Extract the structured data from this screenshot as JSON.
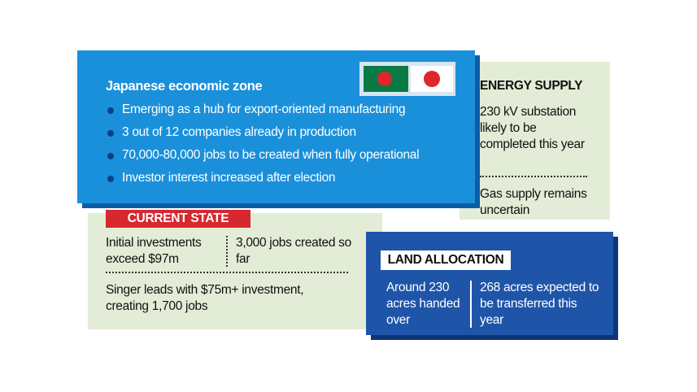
{
  "zone": {
    "title": "Japanese economic zone",
    "bullets": [
      "Emerging as a hub for export-oriented manufacturing",
      "3 out of 12 companies already in production",
      "70,000-80,000 jobs to be created when fully operational",
      "Investor interest increased after election"
    ]
  },
  "energy": {
    "title": "ENERGY SUPPLY",
    "items": [
      "230 kV substation likely to be completed this year",
      "Gas supply remains uncertain"
    ]
  },
  "current": {
    "title": "CURRENT STATE",
    "items": [
      "Initial investments exceed $97m",
      "3,000 jobs created so far"
    ],
    "note": "Singer leads with $75m+ investment, creating 1,700 jobs"
  },
  "land": {
    "title": "LAND ALLOCATION",
    "items": [
      "Around 230 acres handed over",
      "268 acres expected to be transferred this year"
    ]
  }
}
